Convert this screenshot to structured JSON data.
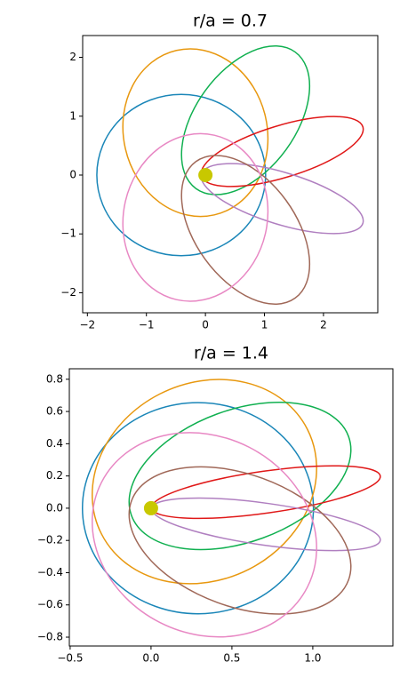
{
  "chart_data": [
    {
      "type": "ellipse",
      "title": "r/a = 0.7",
      "xlim": [
        -2.08,
        2.92
      ],
      "ylim": [
        -2.34,
        2.37
      ],
      "xticks": [
        {
          "value": -2,
          "label": "−2"
        },
        {
          "value": -1,
          "label": "−1"
        },
        0,
        1,
        2
      ],
      "yticks": [
        {
          "value": -2,
          "label": "−2"
        },
        {
          "value": -1,
          "label": "−1"
        },
        0,
        1,
        2
      ],
      "focus": {
        "x": 0,
        "y": 0,
        "color": "#c8c800"
      },
      "series": [
        {
          "color": "#1a86b8",
          "cx": -0.41,
          "cy": 0,
          "rx": 1.43,
          "ry": 1.37,
          "angle": 0
        },
        {
          "color": "#e8980f",
          "cx": -0.17,
          "cy": 0.72,
          "rx": 1.43,
          "ry": 1.22,
          "angle": 103
        },
        {
          "color": "#10b050",
          "cx": 0.68,
          "cy": 0.93,
          "rx": 1.43,
          "ry": 0.85,
          "angle": 54
        },
        {
          "color": "#e01818",
          "cx": 1.3,
          "cy": 0.4,
          "rx": 1.43,
          "ry": 0.44,
          "angle": 17
        },
        {
          "color": "#b07fc0",
          "cx": 1.3,
          "cy": -0.4,
          "rx": 1.43,
          "ry": 0.44,
          "angle": -17
        },
        {
          "color": "#a06858",
          "cx": 0.68,
          "cy": -0.93,
          "rx": 1.43,
          "ry": 0.85,
          "angle": -54
        },
        {
          "color": "#e888c4",
          "cx": -0.17,
          "cy": -0.72,
          "rx": 1.43,
          "ry": 1.22,
          "angle": -103
        }
      ]
    },
    {
      "type": "ellipse",
      "title": "r/a = 1.4",
      "xlim": [
        -0.505,
        1.495
      ],
      "ylim": [
        -0.855,
        0.865
      ],
      "xticks": [
        {
          "value": -0.5,
          "label": "−0.5"
        },
        {
          "value": 0,
          "label": "0.0"
        },
        0.5,
        {
          "value": 1,
          "label": "1.0"
        }
      ],
      "yticks": [
        {
          "value": -0.8,
          "label": "−0.8"
        },
        {
          "value": -0.6,
          "label": "−0.6"
        },
        {
          "value": -0.4,
          "label": "−0.4"
        },
        {
          "value": -0.2,
          "label": "−0.2"
        },
        {
          "value": 0,
          "label": "0.0"
        },
        0.2,
        0.4,
        0.6,
        0.8
      ],
      "focus": {
        "x": 0,
        "y": 0,
        "color": "#c8c800"
      },
      "series": [
        {
          "color": "#1a86b8",
          "cx": 0.29,
          "cy": 0,
          "rx": 0.714,
          "ry": 0.655,
          "angle": 0
        },
        {
          "color": "#e8980f",
          "cx": 0.33,
          "cy": 0.165,
          "rx": 0.714,
          "ry": 0.61,
          "angle": 27
        },
        {
          "color": "#10b050",
          "cx": 0.55,
          "cy": 0.2,
          "rx": 0.714,
          "ry": 0.41,
          "angle": 20
        },
        {
          "color": "#e01818",
          "cx": 0.71,
          "cy": 0.1,
          "rx": 0.714,
          "ry": 0.13,
          "angle": 8
        },
        {
          "color": "#b07fc0",
          "cx": 0.71,
          "cy": -0.1,
          "rx": 0.714,
          "ry": 0.13,
          "angle": -8
        },
        {
          "color": "#a06858",
          "cx": 0.55,
          "cy": -0.2,
          "rx": 0.714,
          "ry": 0.41,
          "angle": -20
        },
        {
          "color": "#e888c4",
          "cx": 0.33,
          "cy": -0.165,
          "rx": 0.714,
          "ry": 0.61,
          "angle": -27
        }
      ]
    }
  ]
}
